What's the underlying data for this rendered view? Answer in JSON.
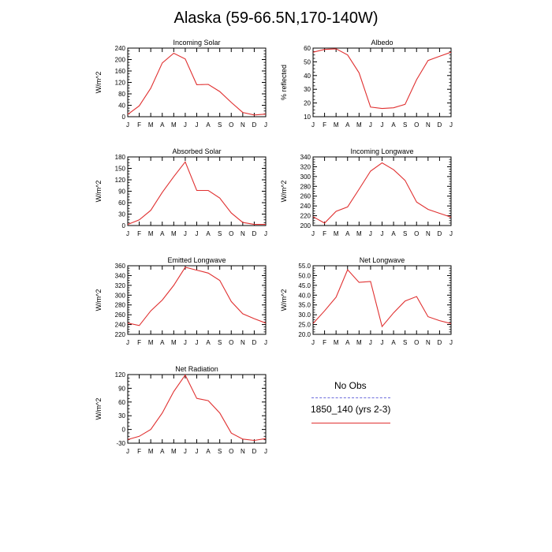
{
  "title": "Alaska (59-66.5N,170-140W)",
  "legend": {
    "items": [
      {
        "label": "No Obs",
        "color": "#6b6bdc",
        "style": "dashed"
      },
      {
        "label": "1850_140 (yrs 2-3)",
        "color": "#e03030",
        "style": "solid"
      }
    ]
  },
  "chart_data": [
    {
      "type": "line",
      "title": "Incoming Solar",
      "ylabel": "W/m^2",
      "categories": [
        "J",
        "F",
        "M",
        "A",
        "M",
        "J",
        "J",
        "A",
        "S",
        "O",
        "N",
        "D",
        "J"
      ],
      "ylim": [
        0,
        240
      ],
      "yticks": [
        0,
        40,
        80,
        120,
        160,
        200,
        240
      ],
      "ytick_labels": [
        "0",
        "40",
        "80",
        "120",
        "160",
        "200",
        "240"
      ],
      "series": [
        {
          "values": [
            8,
            38,
            100,
            188,
            222,
            202,
            112,
            113,
            88,
            50,
            15,
            6,
            9
          ],
          "color": "#e03030"
        }
      ]
    },
    {
      "type": "line",
      "title": "Albedo",
      "ylabel": "% reflected",
      "categories": [
        "J",
        "F",
        "M",
        "A",
        "M",
        "J",
        "J",
        "A",
        "S",
        "O",
        "N",
        "D",
        "J"
      ],
      "ylim": [
        10,
        60
      ],
      "yticks": [
        10,
        20,
        30,
        40,
        50,
        60
      ],
      "ytick_labels": [
        "10",
        "20",
        "30",
        "40",
        "50",
        "60"
      ],
      "series": [
        {
          "values": [
            57,
            59,
            59.5,
            55,
            42,
            17,
            16,
            16.5,
            19,
            37,
            51,
            54,
            57
          ],
          "color": "#e03030"
        }
      ]
    },
    {
      "type": "line",
      "title": "Absorbed Solar",
      "ylabel": "W/m^2",
      "categories": [
        "J",
        "F",
        "M",
        "A",
        "M",
        "J",
        "J",
        "A",
        "S",
        "O",
        "N",
        "D",
        "J"
      ],
      "ylim": [
        0,
        180
      ],
      "yticks": [
        0,
        30,
        60,
        90,
        120,
        150,
        180
      ],
      "ytick_labels": [
        "0",
        "30",
        "60",
        "90",
        "120",
        "150",
        "180"
      ],
      "series": [
        {
          "values": [
            3,
            15,
            40,
            87,
            128,
            167,
            92,
            92,
            72,
            33,
            8,
            3,
            3
          ],
          "color": "#e03030"
        }
      ]
    },
    {
      "type": "line",
      "title": "Incoming Longwave",
      "ylabel": "W/m^2",
      "categories": [
        "J",
        "F",
        "M",
        "A",
        "M",
        "J",
        "J",
        "A",
        "S",
        "O",
        "N",
        "D",
        "J"
      ],
      "ylim": [
        200,
        340
      ],
      "yticks": [
        200,
        220,
        240,
        260,
        280,
        300,
        320,
        340
      ],
      "ytick_labels": [
        "200",
        "220",
        "240",
        "260",
        "280",
        "300",
        "320",
        "340"
      ],
      "series": [
        {
          "values": [
            218,
            205,
            229,
            238,
            274,
            311,
            328,
            314,
            292,
            248,
            233,
            225,
            217
          ],
          "color": "#e03030"
        }
      ]
    },
    {
      "type": "line",
      "title": "Emitted Longwave",
      "ylabel": "W/m^2",
      "categories": [
        "J",
        "F",
        "M",
        "A",
        "M",
        "J",
        "J",
        "A",
        "S",
        "O",
        "N",
        "D",
        "J"
      ],
      "ylim": [
        220,
        360
      ],
      "yticks": [
        220,
        240,
        260,
        280,
        300,
        320,
        340,
        360
      ],
      "ytick_labels": [
        "220",
        "240",
        "260",
        "280",
        "300",
        "320",
        "340",
        "360"
      ],
      "series": [
        {
          "values": [
            243,
            238,
            268,
            290,
            320,
            357,
            351,
            345,
            330,
            287,
            262,
            252,
            243
          ],
          "color": "#e03030"
        }
      ]
    },
    {
      "type": "line",
      "title": "Net Longwave",
      "ylabel": "W/m^2",
      "categories": [
        "J",
        "F",
        "M",
        "A",
        "M",
        "J",
        "J",
        "A",
        "S",
        "O",
        "N",
        "D",
        "J"
      ],
      "ylim": [
        20,
        55
      ],
      "yticks": [
        20,
        25,
        30,
        35,
        40,
        45,
        50,
        55
      ],
      "ytick_labels": [
        "20.0",
        "25.0",
        "30.0",
        "35.0",
        "40.0",
        "45.0",
        "50.0",
        "55.0"
      ],
      "series": [
        {
          "values": [
            25.5,
            32,
            39,
            53,
            46.5,
            47,
            24,
            31,
            37,
            39.3,
            29,
            27,
            25.5
          ],
          "color": "#e03030"
        }
      ]
    },
    {
      "type": "line",
      "title": "Net Radiation",
      "ylabel": "W/m^2",
      "categories": [
        "J",
        "F",
        "M",
        "A",
        "M",
        "J",
        "J",
        "A",
        "S",
        "O",
        "N",
        "D",
        "J"
      ],
      "ylim": [
        -30,
        120
      ],
      "yticks": [
        -30,
        0,
        30,
        60,
        90,
        120
      ],
      "ytick_labels": [
        "-30",
        "0",
        "30",
        "60",
        "90",
        "120"
      ],
      "series": [
        {
          "values": [
            -22,
            -15,
            0,
            36,
            83,
            119,
            68,
            63,
            36,
            -8,
            -21,
            -24,
            -20
          ],
          "color": "#e03030"
        }
      ]
    }
  ]
}
